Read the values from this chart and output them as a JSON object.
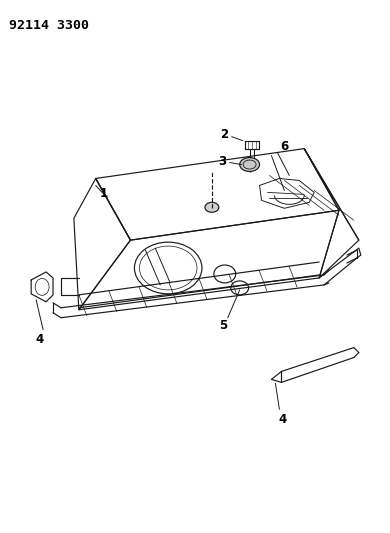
{
  "title": "92114 3300",
  "bg_color": "#ffffff",
  "line_color": "#1a1a1a",
  "label_color": "#000000",
  "title_fontsize": 9.5,
  "label_fontsize": 8.5,
  "fig_width": 3.9,
  "fig_height": 5.33,
  "dpi": 100
}
